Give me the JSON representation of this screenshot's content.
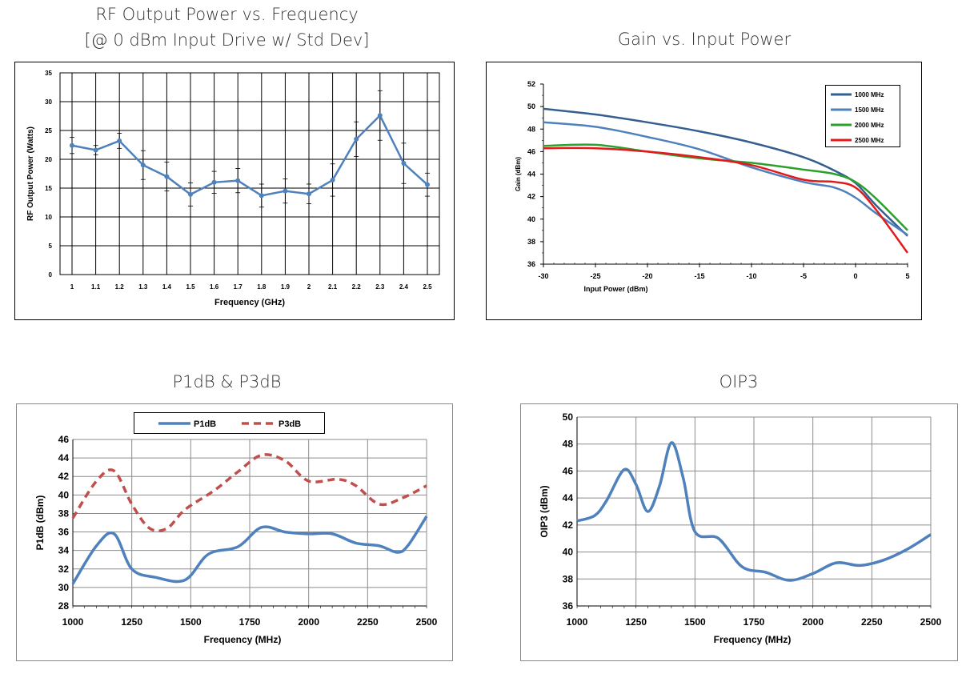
{
  "chart_data": [
    {
      "type": "line",
      "title": "RF Output Power vs. Frequency",
      "subtitle": "[@ 0 dBm Input Drive w/ Std Dev]",
      "xlabel": "Frequency (GHz)",
      "ylabel": "RF Output Power (Watts)",
      "categories": [
        "1",
        "1.1",
        "1.2",
        "1.3",
        "1.4",
        "1.5",
        "1.6",
        "1.7",
        "1.8",
        "1.9",
        "2",
        "2.1",
        "2.2",
        "2.3",
        "2.4",
        "2.5"
      ],
      "yticks": [
        "0",
        "5",
        "10",
        "15",
        "20",
        "25",
        "30",
        "35"
      ],
      "ylim": [
        0,
        35
      ],
      "grid": true,
      "legend": "none",
      "series": [
        {
          "values": [
            22.4,
            21.6,
            23.2,
            19.0,
            17.0,
            13.9,
            16.0,
            16.3,
            13.7,
            14.5,
            14.0,
            16.4,
            23.5,
            27.6,
            19.3,
            15.6
          ],
          "error": [
            1.4,
            0.8,
            1.3,
            2.5,
            2.5,
            2.0,
            1.9,
            2.1,
            2.0,
            2.1,
            1.7,
            2.8,
            3.0,
            4.3,
            3.5,
            2.0
          ],
          "color": "#4f81bd"
        }
      ]
    },
    {
      "type": "line",
      "title": "Gain vs. Input Power",
      "xlabel": "Input Power (dBm)",
      "ylabel": "Gain (dBm)",
      "xticks": [
        "-30",
        "-25",
        "-20",
        "-15",
        "-10",
        "-5",
        "0",
        "5"
      ],
      "yticks": [
        "36",
        "38",
        "40",
        "42",
        "44",
        "46",
        "48",
        "50",
        "52"
      ],
      "xlim": [
        -30,
        5
      ],
      "ylim": [
        36,
        52
      ],
      "grid": false,
      "legend": "top-right",
      "series": [
        {
          "name": "1000 MHz",
          "color": "#365f91",
          "x": [
            -30,
            -25,
            -20,
            -15,
            -10,
            -5,
            -2,
            0,
            2,
            5
          ],
          "y": [
            49.8,
            49.3,
            48.6,
            47.8,
            46.8,
            45.5,
            44.3,
            43.2,
            41.2,
            38.5
          ]
        },
        {
          "name": "1500 MHz",
          "color": "#4f81bd",
          "x": [
            -30,
            -25,
            -20,
            -15,
            -10,
            -5,
            -2,
            0,
            2,
            5
          ],
          "y": [
            48.6,
            48.2,
            47.3,
            46.2,
            44.6,
            43.3,
            42.8,
            41.9,
            40.5,
            38.6
          ]
        },
        {
          "name": "2000 MHz",
          "color": "#2ca02c",
          "x": [
            -30,
            -25,
            -20,
            -15,
            -10,
            -5,
            -2,
            0,
            2,
            5
          ],
          "y": [
            46.5,
            46.6,
            46.0,
            45.4,
            45.0,
            44.4,
            44.0,
            43.3,
            41.8,
            39.0
          ]
        },
        {
          "name": "2500 MHz",
          "color": "#e31a1c",
          "x": [
            -30,
            -25,
            -20,
            -15,
            -10,
            -5,
            -2,
            0,
            2,
            5
          ],
          "y": [
            46.3,
            46.3,
            46.0,
            45.5,
            44.8,
            43.5,
            43.3,
            42.8,
            40.8,
            37.0
          ]
        }
      ]
    },
    {
      "type": "line",
      "title": "P1dB & P3dB",
      "xlabel": "Frequency (MHz)",
      "ylabel": "P1dB (dBm)",
      "xticks": [
        "1000",
        "1250",
        "1500",
        "1750",
        "2000",
        "2250",
        "2500"
      ],
      "yticks": [
        "28",
        "30",
        "32",
        "34",
        "36",
        "38",
        "40",
        "42",
        "44",
        "46"
      ],
      "xlim": [
        1000,
        2500
      ],
      "ylim": [
        28,
        46
      ],
      "grid": true,
      "legend": "top",
      "series": [
        {
          "name": "P1dB",
          "color": "#4f81bd",
          "dash": "",
          "x": [
            1000,
            1100,
            1175,
            1250,
            1350,
            1475,
            1575,
            1700,
            1800,
            1900,
            2000,
            2100,
            2200,
            2300,
            2375,
            2420,
            2500
          ],
          "y": [
            30.4,
            34.5,
            35.8,
            32.0,
            31.1,
            30.8,
            33.6,
            34.4,
            36.5,
            36.0,
            35.8,
            35.8,
            34.8,
            34.5,
            33.8,
            34.5,
            37.7
          ]
        },
        {
          "name": "P3dB",
          "color": "#c0504d",
          "dash": "9 6",
          "x": [
            1000,
            1100,
            1175,
            1250,
            1325,
            1400,
            1475,
            1600,
            1700,
            1800,
            1900,
            2000,
            2125,
            2200,
            2300,
            2400,
            2500
          ],
          "y": [
            37.5,
            41.5,
            42.6,
            39.0,
            36.4,
            36.4,
            38.4,
            40.5,
            42.5,
            44.3,
            43.7,
            41.5,
            41.7,
            41.0,
            39.0,
            39.7,
            41.0
          ]
        }
      ]
    },
    {
      "type": "line",
      "title": "OIP3",
      "xlabel": "Frequency (MHz)",
      "ylabel": "OIP3 (dBm)",
      "xticks": [
        "1000",
        "1250",
        "1500",
        "1750",
        "2000",
        "2250",
        "2500"
      ],
      "yticks": [
        "36",
        "38",
        "40",
        "42",
        "44",
        "46",
        "48",
        "50"
      ],
      "xlim": [
        1000,
        2500
      ],
      "ylim": [
        36,
        50
      ],
      "grid": true,
      "legend": "none",
      "series": [
        {
          "color": "#4f81bd",
          "x": [
            1000,
            1075,
            1125,
            1200,
            1250,
            1300,
            1350,
            1400,
            1450,
            1500,
            1600,
            1700,
            1800,
            1900,
            2000,
            2100,
            2200,
            2300,
            2400,
            2500
          ],
          "y": [
            42.3,
            42.7,
            43.8,
            46.1,
            45.0,
            43.0,
            44.9,
            48.1,
            45.5,
            41.5,
            41.0,
            38.9,
            38.5,
            37.9,
            38.4,
            39.2,
            39.0,
            39.4,
            40.2,
            41.3
          ]
        }
      ]
    }
  ]
}
